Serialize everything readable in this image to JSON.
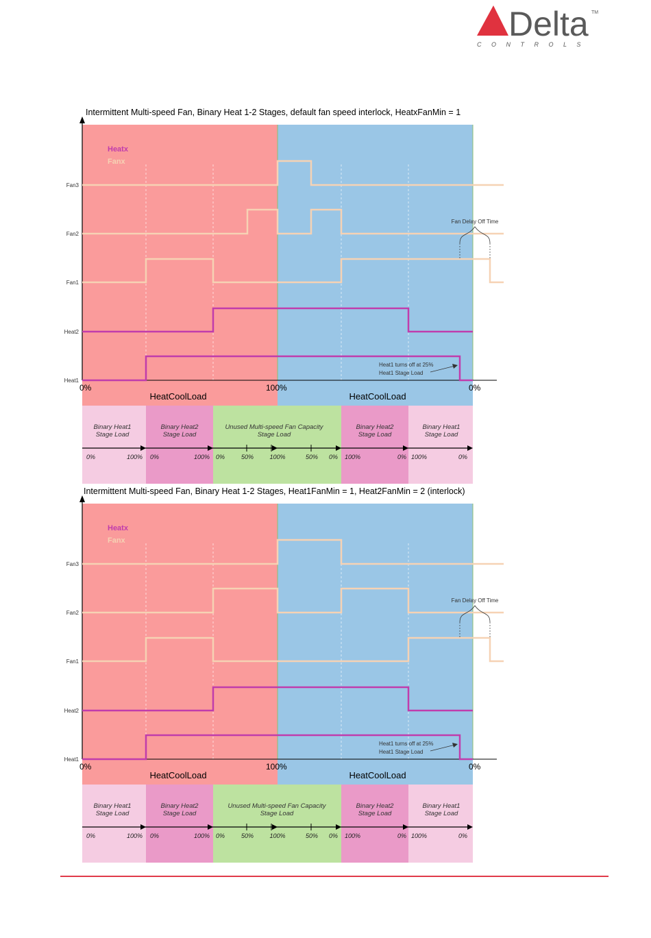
{
  "logo": {
    "word": "Delta",
    "sub": "C O N T R O L S",
    "tm": "TM",
    "color_triangle": "#e0323f",
    "color_text": "#5a5a5a"
  },
  "colors": {
    "heat_bg": "#fa9b9b",
    "cool_bg": "#9ac6e6",
    "heat_line": "#c03cac",
    "fan_line": "#f6d2b4",
    "light_pink": "#f5cce2",
    "mid_pink": "#ea9ac8",
    "green": "#bde2a0",
    "footer_rule": "#e03a4a"
  },
  "diagrams": [
    {
      "title": "Intermittent Multi-speed Fan, Binary Heat 1-2 Stages, default fan speed interlock, HeatxFanMin = 1",
      "legend_heat": "Heatx",
      "legend_fan": "Fanx",
      "y_labels": [
        "Fan3",
        "Fan2",
        "Fan1",
        "Heat2",
        "Heat1"
      ],
      "x_ticks": [
        "0%",
        "100%",
        "0%"
      ],
      "x_section_labels": [
        "HeatCoolLoad",
        "HeatCoolLoad"
      ],
      "annotation_fan_delay": "Fan Delay Off Time",
      "annotation_heat1_line1": "Heat1 turns off at 25%",
      "annotation_heat1_line2": "Heat1 Stage Load",
      "stage_boxes": [
        {
          "line1": "Binary Heat1",
          "line2": "Stage Load",
          "left": "0%",
          "right": "100%"
        },
        {
          "line1": "Binary Heat2",
          "line2": "Stage Load",
          "left": "0%",
          "right": "100%"
        },
        {
          "line1": "Unused Multi-speed Fan Capacity",
          "line2": "Stage Load",
          "ticks": [
            "0%",
            "50%",
            "100%",
            "50%",
            "0%"
          ]
        },
        {
          "line1": "Binary Heat2",
          "line2": "Stage Load",
          "left": "100%",
          "right": "0%"
        },
        {
          "line1": "Binary Heat1",
          "line2": "Stage Load",
          "left": "100%",
          "right": "0%"
        }
      ]
    },
    {
      "title": "Intermittent Multi-speed Fan, Binary Heat 1-2 Stages, Heat1FanMin = 1, Heat2FanMin = 2 (interlock)",
      "legend_heat": "Heatx",
      "legend_fan": "Fanx",
      "y_labels": [
        "Fan3",
        "Fan2",
        "Fan1",
        "Heat2",
        "Heat1"
      ],
      "x_ticks": [
        "0%",
        "100%",
        "0%"
      ],
      "x_section_labels": [
        "HeatCoolLoad",
        "HeatCoolLoad"
      ],
      "annotation_fan_delay": "Fan Delay Off Time",
      "annotation_heat1_line1": "Heat1 turns off at 25%",
      "annotation_heat1_line2": "Heat1 Stage Load",
      "stage_boxes": [
        {
          "line1": "Binary Heat1",
          "line2": "Stage Load",
          "left": "0%",
          "right": "100%"
        },
        {
          "line1": "Binary Heat2",
          "line2": "Stage Load",
          "left": "0%",
          "right": "100%"
        },
        {
          "line1": "Unused Multi-speed Fan Capacity",
          "line2": "Stage Load",
          "ticks": [
            "0%",
            "50%",
            "100%",
            "50%",
            "0%"
          ]
        },
        {
          "line1": "Binary Heat2",
          "line2": "Stage Load",
          "left": "100%",
          "right": "0%"
        },
        {
          "line1": "Binary Heat1",
          "line2": "Stage Load",
          "left": "100%",
          "right": "0%"
        }
      ]
    }
  ]
}
